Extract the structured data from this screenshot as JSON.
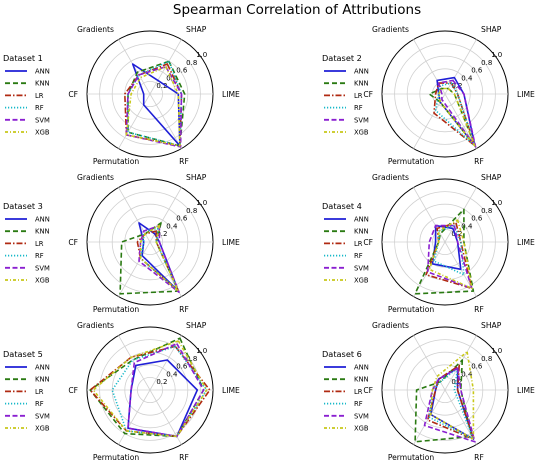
{
  "figure": {
    "title": "Spearman Correlation of Attributions"
  },
  "styles": {
    "ANN": {
      "color": "#1f1fd6",
      "dash": "",
      "width": 1.6
    },
    "KNN": {
      "color": "#2a7a12",
      "dash": "5,3",
      "width": 1.6
    },
    "LR": {
      "color": "#b02a12",
      "dash": "6,2,1.5,2",
      "width": 1.6
    },
    "RF": {
      "color": "#17b8c8",
      "dash": "1.2,1.8",
      "width": 1.6
    },
    "SVM": {
      "color": "#8a1fd0",
      "dash": "5,2.5",
      "width": 1.6
    },
    "XGB": {
      "color": "#c8c81a",
      "dash": "3,2,1,2",
      "width": 1.6
    }
  },
  "chart_data": [
    {
      "type": "radar",
      "title": "Dataset 1",
      "axes": [
        "SHAP",
        "LIME",
        "RF",
        "Permutation",
        "CF",
        "Gradients"
      ],
      "rticks": [
        "0.2",
        "0.4",
        "0.6",
        "0.8",
        "1.0"
      ],
      "rlim": [
        0,
        1.0
      ],
      "series": [
        {
          "name": "ANN",
          "values": [
            0.25,
            0.45,
            0.95,
            0.2,
            0.1,
            0.55
          ]
        },
        {
          "name": "KNN",
          "values": [
            0.6,
            0.55,
            0.95,
            0.7,
            0.35,
            0.4
          ]
        },
        {
          "name": "LR",
          "values": [
            0.55,
            0.5,
            0.95,
            0.75,
            0.4,
            0.35
          ]
        },
        {
          "name": "RF",
          "values": [
            0.6,
            0.5,
            0.95,
            0.7,
            0.35,
            0.35
          ]
        },
        {
          "name": "SVM",
          "values": [
            0.5,
            0.5,
            0.97,
            0.75,
            0.35,
            0.35
          ]
        },
        {
          "name": "XGB",
          "values": [
            0.5,
            0.45,
            0.95,
            0.75,
            0.3,
            0.3
          ]
        }
      ]
    },
    {
      "type": "radar",
      "title": "Dataset 2",
      "axes": [
        "SHAP",
        "LIME",
        "RF",
        "Permutation",
        "CF",
        "Gradients"
      ],
      "rticks": [
        "0.2",
        "0.4",
        "0.6",
        "0.8",
        "1.0"
      ],
      "rlim": [
        0,
        1.0
      ],
      "series": [
        {
          "name": "ANN",
          "values": [
            0.3,
            0.3,
            0.95,
            0.15,
            0.1,
            0.25
          ]
        },
        {
          "name": "KNN",
          "values": [
            0.1,
            0.15,
            0.95,
            0.15,
            0.25,
            0.1
          ]
        },
        {
          "name": "LR",
          "values": [
            0.2,
            0.2,
            0.95,
            0.35,
            0.15,
            0.2
          ]
        },
        {
          "name": "RF",
          "values": [
            0.2,
            0.2,
            0.95,
            0.3,
            0.1,
            0.15
          ]
        },
        {
          "name": "SVM",
          "values": [
            0.25,
            0.3,
            0.97,
            0.1,
            0.05,
            0.2
          ]
        },
        {
          "name": "XGB",
          "values": [
            0.1,
            0.15,
            0.95,
            0.15,
            0.1,
            0.1
          ]
        }
      ]
    },
    {
      "type": "radar",
      "title": "Dataset 3",
      "axes": [
        "SHAP",
        "LIME",
        "RF",
        "Permutation",
        "CF",
        "Gradients"
      ],
      "rticks": [
        "0.2",
        "0.4",
        "0.6",
        "0.8",
        "1.0"
      ],
      "rlim": [
        0,
        1.0
      ],
      "series": [
        {
          "name": "ANN",
          "values": [
            0.15,
            0.15,
            0.9,
            0.25,
            0.1,
            0.35
          ]
        },
        {
          "name": "KNN",
          "values": [
            0.35,
            0.1,
            0.9,
            0.95,
            0.45,
            0.15
          ]
        },
        {
          "name": "LR",
          "values": [
            0.2,
            0.1,
            0.9,
            0.3,
            0.2,
            0.15
          ]
        },
        {
          "name": "RF",
          "values": [
            0.25,
            0.1,
            0.9,
            0.3,
            0.1,
            0.2
          ]
        },
        {
          "name": "SVM",
          "values": [
            0.3,
            0.15,
            0.92,
            0.35,
            0.15,
            0.2
          ]
        },
        {
          "name": "XGB",
          "values": [
            0.3,
            0.1,
            0.9,
            0.3,
            0.15,
            0.15
          ]
        }
      ]
    },
    {
      "type": "radar",
      "title": "Dataset 4",
      "axes": [
        "SHAP",
        "LIME",
        "RF",
        "Permutation",
        "CF",
        "Gradients"
      ],
      "rticks": [
        "0.2",
        "0.4",
        "0.6",
        "0.8",
        "1.0"
      ],
      "rlim": [
        0,
        1.0
      ],
      "series": [
        {
          "name": "ANN",
          "values": [
            0.25,
            0.2,
            0.5,
            0.4,
            0.15,
            0.3
          ]
        },
        {
          "name": "KNN",
          "values": [
            0.6,
            0.3,
            0.9,
            0.95,
            0.1,
            0.15
          ]
        },
        {
          "name": "LR",
          "values": [
            0.35,
            0.25,
            0.85,
            0.6,
            0.1,
            0.25
          ]
        },
        {
          "name": "RF",
          "values": [
            0.3,
            0.25,
            0.6,
            0.35,
            0.1,
            0.2
          ]
        },
        {
          "name": "SVM",
          "values": [
            0.3,
            0.2,
            0.85,
            0.55,
            0.25,
            0.3
          ]
        },
        {
          "name": "XGB",
          "values": [
            0.4,
            0.3,
            0.85,
            0.5,
            0.1,
            0.2
          ]
        }
      ]
    },
    {
      "type": "radar",
      "title": "Dataset 5",
      "axes": [
        "SHAP",
        "LIME",
        "RF",
        "Permutation",
        "CF",
        "Gradients"
      ],
      "rticks": [
        "0.2",
        "0.4",
        "0.6",
        "0.8",
        "1.0"
      ],
      "rlim": [
        0,
        1.0
      ],
      "series": [
        {
          "name": "ANN",
          "values": [
            0.55,
            0.75,
            0.85,
            0.7,
            0.3,
            0.45
          ]
        },
        {
          "name": "KNN",
          "values": [
            0.95,
            0.85,
            0.85,
            0.8,
            0.95,
            0.55
          ]
        },
        {
          "name": "LR",
          "values": [
            0.8,
            0.95,
            0.85,
            0.75,
            0.95,
            0.6
          ]
        },
        {
          "name": "RF",
          "values": [
            0.8,
            0.9,
            0.85,
            0.75,
            0.6,
            0.55
          ]
        },
        {
          "name": "SVM",
          "values": [
            0.85,
            0.85,
            0.85,
            0.7,
            0.3,
            0.5
          ]
        },
        {
          "name": "XGB",
          "values": [
            0.9,
            0.9,
            0.85,
            0.75,
            0.9,
            0.6
          ]
        }
      ]
    },
    {
      "type": "radar",
      "title": "Dataset 6",
      "axes": [
        "SHAP",
        "LIME",
        "RF",
        "Permutation",
        "CF",
        "Gradients"
      ],
      "rticks": [
        "0.2",
        "0.4",
        "0.6",
        "0.8",
        "1.0"
      ],
      "rlim": [
        0,
        1.0
      ],
      "series": [
        {
          "name": "ANN",
          "values": [
            0.4,
            0.2,
            0.9,
            0.45,
            0.15,
            0.2
          ]
        },
        {
          "name": "KNN",
          "values": [
            0.55,
            0.25,
            0.85,
            0.95,
            0.45,
            0.15
          ]
        },
        {
          "name": "LR",
          "values": [
            0.45,
            0.2,
            0.9,
            0.55,
            0.15,
            0.2
          ]
        },
        {
          "name": "RF",
          "values": [
            0.4,
            0.15,
            0.9,
            0.5,
            0.2,
            0.15
          ]
        },
        {
          "name": "SVM",
          "values": [
            0.4,
            0.25,
            0.95,
            0.65,
            0.2,
            0.2
          ]
        },
        {
          "name": "XGB",
          "values": [
            0.7,
            0.45,
            0.9,
            0.45,
            0.2,
            0.25
          ]
        }
      ]
    }
  ]
}
